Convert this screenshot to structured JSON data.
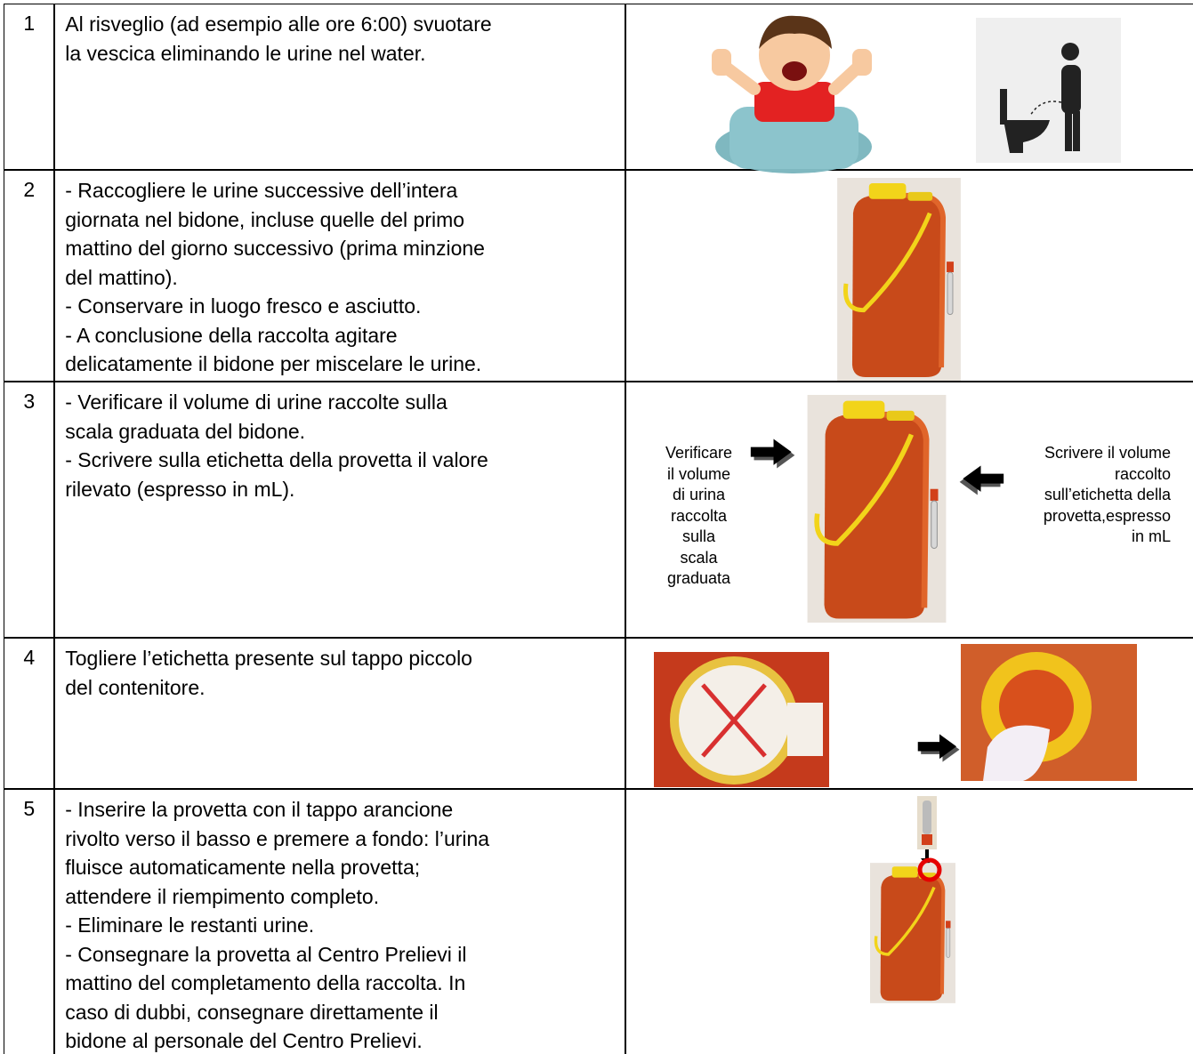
{
  "table": {
    "rows": [
      {
        "number": "1",
        "lines": [
          "Al risveglio (ad esempio alle ore 6:00) svuotare",
          "la vescica eliminando le urine nel water."
        ]
      },
      {
        "number": "2",
        "lines": [
          "- Raccogliere le urine successive dell’intera",
          "giornata nel bidone, incluse quelle del primo",
          "mattino del giorno successivo (prima minzione",
          "del mattino).",
          "- Conservare in luogo fresco e asciutto.",
          "- A conclusione della raccolta agitare",
          "delicatamente il bidone per miscelare le urine."
        ]
      },
      {
        "number": "3",
        "lines": [
          "- Verificare il volume di urine raccolte sulla",
          "scala graduata del bidone.",
          "- Scrivere sulla etichetta della provetta il valore",
          "rilevato (espresso in mL)."
        ]
      },
      {
        "number": "4",
        "lines": [
          "Togliere l’etichetta presente sul tappo piccolo",
          "del contenitore."
        ]
      },
      {
        "number": "5",
        "lines": [
          "- Inserire la provetta con il tappo arancione",
          "rivolto verso il basso e premere a fondo: l’urina",
          "fluisce automaticamente nella provetta;",
          "attendere il riempimento completo.",
          "- Eliminare le restanti urine.",
          "- Consegnare la provetta al Centro Prelievi il",
          "mattino del completamento della raccolta. In",
          "caso di dubbi, consegnare direttamente il",
          "bidone al personale del Centro Prelievi."
        ]
      }
    ]
  },
  "figures": {
    "verify_label": [
      "Verificare",
      "il volume",
      "di urina",
      "raccolta",
      "sulla",
      "scala",
      "graduata"
    ],
    "write_label": [
      "Scrivere il volume",
      "raccolto",
      "sull’etichetta della",
      "provetta,espresso",
      "in mL"
    ]
  }
}
